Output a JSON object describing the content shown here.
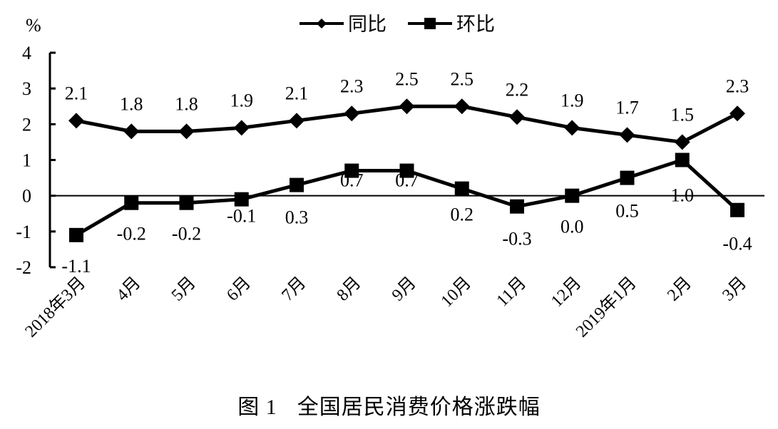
{
  "chart_data": {
    "type": "line",
    "title": "图 1　全国居民消费价格涨跌幅",
    "caption": {
      "figure_label": "图 1",
      "text": "全国居民消费价格涨跌幅"
    },
    "ylabel": "%",
    "xlabel": "",
    "ylim": [
      -2,
      4
    ],
    "yticks": [
      -2,
      -1,
      0,
      1,
      2,
      3,
      4
    ],
    "grid": false,
    "legend_position": "top",
    "categories": [
      "2018年3月",
      "4月",
      "5月",
      "6月",
      "7月",
      "8月",
      "9月",
      "10月",
      "11月",
      "12月",
      "2019年1月",
      "2月",
      "3月"
    ],
    "series": [
      {
        "name": "同比",
        "marker": "diamond",
        "color": "#000000",
        "values": [
          2.1,
          1.8,
          1.8,
          1.9,
          2.1,
          2.3,
          2.5,
          2.5,
          2.2,
          1.9,
          1.7,
          1.5,
          2.3
        ],
        "labels": [
          "2.1",
          "1.8",
          "1.8",
          "1.9",
          "2.1",
          "2.3",
          "2.5",
          "2.5",
          "2.2",
          "1.9",
          "1.7",
          "1.5",
          "2.3"
        ]
      },
      {
        "name": "环比",
        "marker": "square",
        "color": "#000000",
        "values": [
          -1.1,
          -0.2,
          -0.2,
          -0.1,
          0.3,
          0.7,
          0.7,
          0.2,
          -0.3,
          0.0,
          0.5,
          1.0,
          -0.4
        ],
        "labels": [
          "-1.1",
          "-0.2",
          "-0.2",
          "-0.1",
          "0.3",
          "0.7",
          "0.7",
          "0.2",
          "-0.3",
          "0.0",
          "0.5",
          "1.0",
          "-0.4"
        ]
      }
    ]
  }
}
